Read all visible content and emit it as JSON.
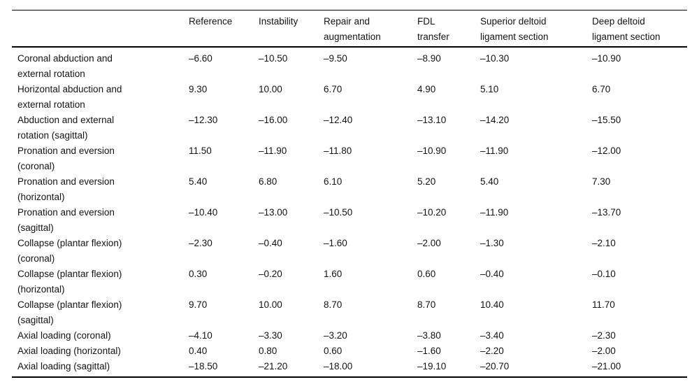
{
  "colors": {
    "background": "#ffffff",
    "text": "#141414",
    "rule": "#000000"
  },
  "table": {
    "columns": [
      {
        "text": ""
      },
      {
        "text": "Reference"
      },
      {
        "text": "Instability"
      },
      {
        "text": "Repair and\naugmentation"
      },
      {
        "text": "FDL\ntransfer"
      },
      {
        "text": "Superior deltoid\nligament section"
      },
      {
        "text": "Deep deltoid\nligament section"
      }
    ],
    "rows": [
      {
        "label": "Coronal abduction and\nexternal rotation",
        "values": [
          "–6.60",
          "–10.50",
          "–9.50",
          "–8.90",
          "–10.30",
          "–10.90"
        ]
      },
      {
        "label": "Horizontal abduction and\nexternal rotation",
        "values": [
          "9.30",
          "10.00",
          "6.70",
          "4.90",
          "5.10",
          "6.70"
        ]
      },
      {
        "label": "Abduction and external\nrotation (sagittal)",
        "values": [
          "–12.30",
          "–16.00",
          "–12.40",
          "–13.10",
          "–14.20",
          "–15.50"
        ]
      },
      {
        "label": "Pronation and eversion\n(coronal)",
        "values": [
          "11.50",
          "–11.90",
          "–11.80",
          "–10.90",
          "–11.90",
          "–12.00"
        ]
      },
      {
        "label": "Pronation and eversion\n(horizontal)",
        "values": [
          "5.40",
          "6.80",
          "6.10",
          "5.20",
          "5.40",
          "7.30"
        ]
      },
      {
        "label": "Pronation and eversion\n(sagittal)",
        "values": [
          "–10.40",
          "–13.00",
          "–10.50",
          "–10.20",
          "–11.90",
          "–13.70"
        ]
      },
      {
        "label": "Collapse (plantar flexion)\n(coronal)",
        "values": [
          "–2.30",
          "–0.40",
          "–1.60",
          "–2.00",
          "–1.30",
          "–2.10"
        ]
      },
      {
        "label": "Collapse (plantar flexion)\n(horizontal)",
        "values": [
          "0.30",
          "–0.20",
          "1.60",
          "0.60",
          "–0.40",
          "–0.10"
        ]
      },
      {
        "label": "Collapse (plantar flexion)\n(sagittal)",
        "values": [
          "9.70",
          "10.00",
          "8.70",
          "8.70",
          "10.40",
          "11.70"
        ]
      },
      {
        "label": "Axial loading (coronal)",
        "values": [
          "–4.10",
          "–3.30",
          "–3.20",
          "–3.80",
          "–3.40",
          "–2.30"
        ]
      },
      {
        "label": "Axial loading (horizontal)",
        "values": [
          "0.40",
          "0.80",
          "0.60",
          "–1.60",
          "–2.20",
          "–2.00"
        ]
      },
      {
        "label": "Axial loading (sagittal)",
        "values": [
          "–18.50",
          "–21.20",
          "–18.00",
          "–19.10",
          "–20.70",
          "–21.00"
        ]
      }
    ]
  }
}
